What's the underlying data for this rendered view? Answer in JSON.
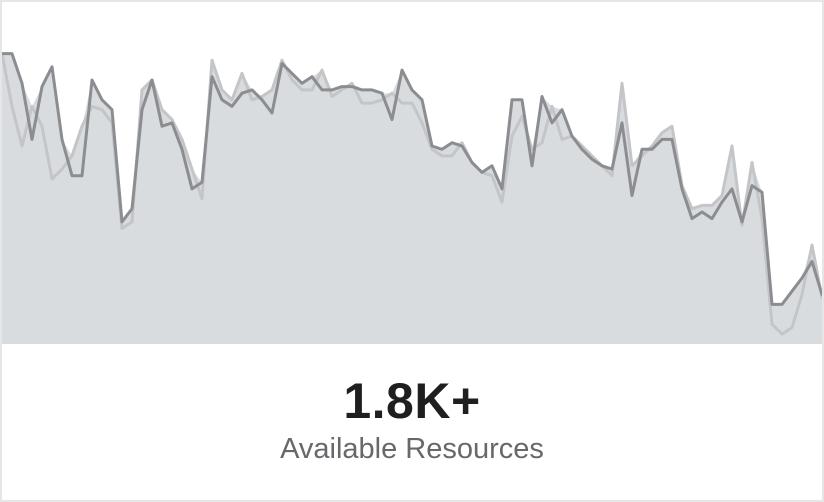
{
  "stat": {
    "value": "1.8K+",
    "label": "Available Resources"
  },
  "colors": {
    "fill": "#d9dcdf",
    "series_primary": "#8b8d90",
    "series_secondary": "#c3c5c8",
    "text_primary": "#1f1f1f",
    "text_secondary": "#66686b"
  },
  "chart_data": {
    "type": "area",
    "grid": false,
    "legend": "none",
    "ylim": [
      0,
      100
    ],
    "series": [
      {
        "values": [
          88,
          88,
          79,
          62,
          78,
          84,
          62,
          51,
          51,
          80,
          74,
          71,
          37,
          41,
          71,
          80,
          66,
          67,
          59,
          47,
          49,
          81,
          74,
          72,
          76,
          77,
          74,
          70,
          85,
          82,
          79,
          81,
          77,
          77,
          78,
          78,
          77,
          77,
          76,
          68,
          83,
          77,
          74,
          60,
          59,
          61,
          60,
          55,
          52,
          54,
          47,
          74,
          74,
          54,
          75,
          67,
          71,
          63,
          59,
          56,
          54,
          53,
          67,
          45,
          59,
          59,
          62,
          62,
          47,
          38,
          40,
          38,
          43,
          47,
          37,
          48,
          46,
          12,
          12,
          16,
          20,
          25,
          15
        ]
      },
      {
        "values": [
          88,
          72,
          60,
          72,
          66,
          50,
          53,
          57,
          66,
          72,
          71,
          67,
          35,
          37,
          77,
          80,
          71,
          68,
          62,
          53,
          44,
          86,
          77,
          74,
          82,
          74,
          75,
          77,
          86,
          80,
          77,
          77,
          83,
          75,
          77,
          79,
          73,
          73,
          74,
          76,
          73,
          73,
          67,
          59,
          57,
          57,
          61,
          55,
          52,
          51,
          43,
          63,
          69,
          59,
          61,
          72,
          62,
          63,
          60,
          57,
          54,
          51,
          79,
          54,
          57,
          60,
          64,
          66,
          48,
          41,
          42,
          42,
          45,
          60,
          36,
          55,
          38,
          6,
          3,
          5,
          15,
          30,
          14
        ]
      }
    ]
  }
}
